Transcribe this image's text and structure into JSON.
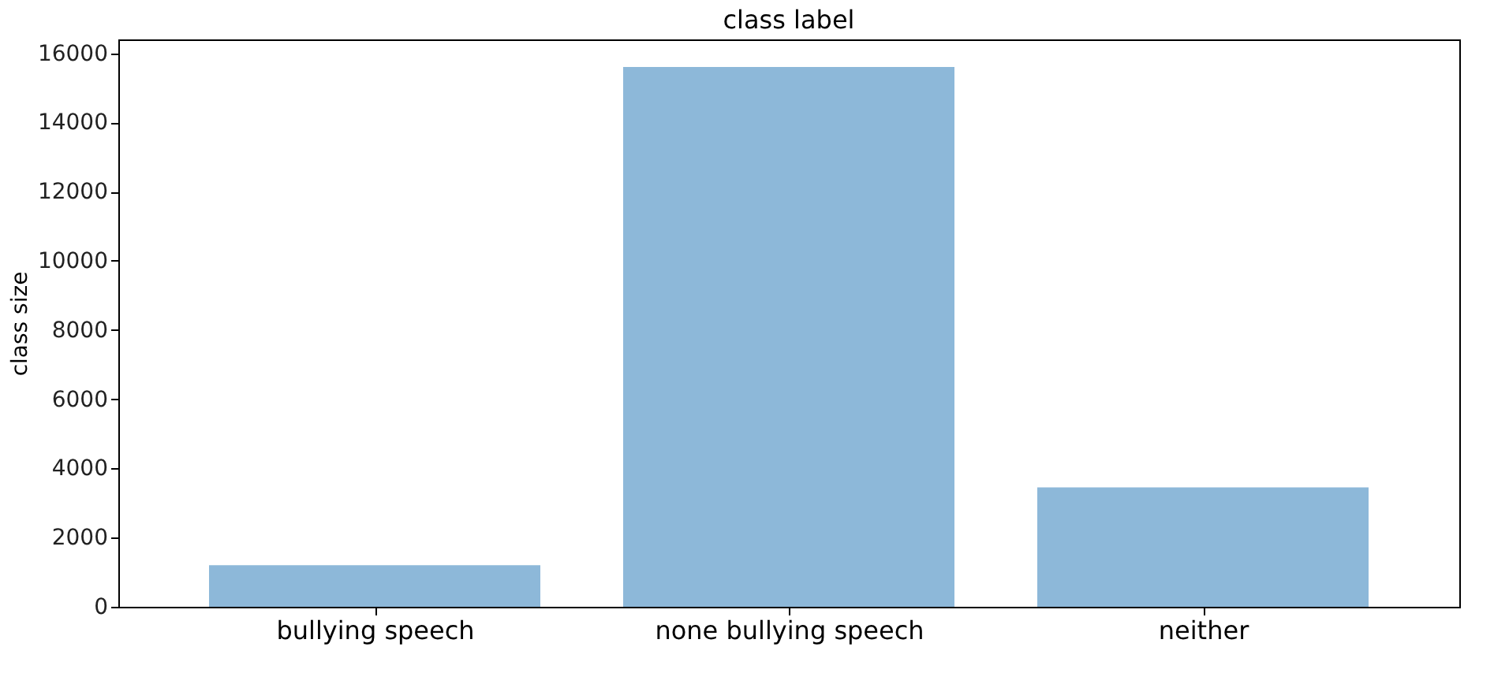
{
  "chart_data": {
    "type": "bar",
    "title": "class label",
    "ylabel": "class size",
    "categories": [
      "bullying speech",
      "none bullying speech",
      "neither"
    ],
    "values": [
      1200,
      15600,
      3450
    ],
    "color": "#8db8d9",
    "ylim": [
      0,
      16400
    ],
    "yticks": [
      0,
      2000,
      4000,
      6000,
      8000,
      10000,
      12000,
      14000,
      16000
    ],
    "grid": false
  }
}
